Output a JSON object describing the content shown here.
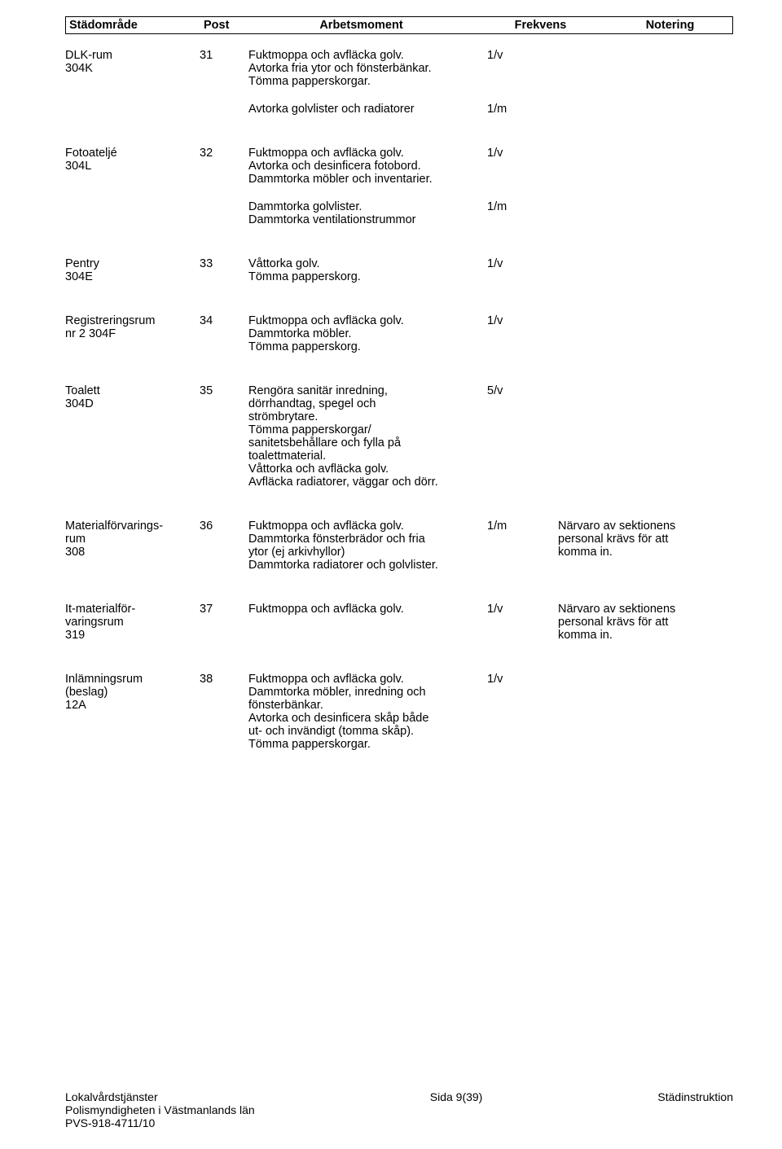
{
  "header": {
    "omrade": "Städområde",
    "post": "Post",
    "arbets": "Arbetsmoment",
    "frek": "Frekvens",
    "noter": "Notering"
  },
  "entries": [
    {
      "omrade": "DLK-rum\n304K",
      "post": "31",
      "tasks": [
        {
          "text": "Fuktmoppa och avfläcka golv.\nAvtorka fria ytor och fönsterbänkar.\nTömma papperskorgar.",
          "freq": "1/v"
        },
        {
          "text": "Avtorka golvlister och radiatorer",
          "freq": "1/m"
        }
      ],
      "note": ""
    },
    {
      "omrade": "Fotoateljé\n304L",
      "post": "32",
      "tasks": [
        {
          "text": "Fuktmoppa och avfläcka golv.\nAvtorka och desinficera fotobord.\nDammtorka möbler och inventarier.",
          "freq": "1/v"
        },
        {
          "text": "Dammtorka golvlister.\nDammtorka ventilationstrummor",
          "freq": "1/m"
        }
      ],
      "note": ""
    },
    {
      "omrade": "Pentry\n304E",
      "post": "33",
      "tasks": [
        {
          "text": "Våttorka golv.\nTömma papperskorg.",
          "freq": "1/v"
        }
      ],
      "note": ""
    },
    {
      "omrade": "Registreringsrum\nnr 2 304F",
      "post": "34",
      "tasks": [
        {
          "text": "Fuktmoppa och avfläcka golv.\nDammtorka möbler.\nTömma papperskorg.",
          "freq": "1/v"
        }
      ],
      "note": ""
    },
    {
      "omrade": "Toalett\n304D",
      "post": "35",
      "tasks": [
        {
          "text": "Rengöra sanitär inredning,\ndörrhandtag, spegel och\nströmbrytare.\nTömma papperskorgar/\nsanitetsbehållare och fylla på\ntoalettmaterial.\nVåttorka och avfläcka golv.\nAvfläcka radiatorer, väggar och dörr.",
          "freq": "5/v"
        }
      ],
      "note": ""
    },
    {
      "omrade": "Materialförvarings-\nrum\n308",
      "post": "36",
      "tasks": [
        {
          "text": "Fuktmoppa och avfläcka golv.\nDammtorka fönsterbrädor och fria\nytor (ej arkivhyllor)\nDammtorka radiatorer och golvlister.",
          "freq": "1/m"
        }
      ],
      "note": "Närvaro av sektionens\npersonal krävs för att\nkomma in."
    },
    {
      "omrade": "It-materialför-\nvaringsrum\n319",
      "post": "37",
      "tasks": [
        {
          "text": "Fuktmoppa och avfläcka golv.",
          "freq": "1/v"
        }
      ],
      "note": "Närvaro av sektionens\npersonal krävs för att\nkomma in."
    },
    {
      "omrade": "Inlämningsrum\n(beslag)\n12A",
      "post": "38",
      "tasks": [
        {
          "text": "Fuktmoppa och avfläcka golv.\nDammtorka möbler, inredning och\nfönsterbänkar.\nAvtorka och desinficera skåp både\nut- och invändigt (tomma skåp).\nTömma papperskorgar.",
          "freq": "1/v"
        }
      ],
      "note": ""
    }
  ],
  "footer": {
    "left1": "Lokalvårdstjänster",
    "left2": "Polismyndigheten i Västmanlands län",
    "left3": "PVS-918-4711/10",
    "mid": "Sida 9(39)",
    "right": "Städinstruktion"
  }
}
